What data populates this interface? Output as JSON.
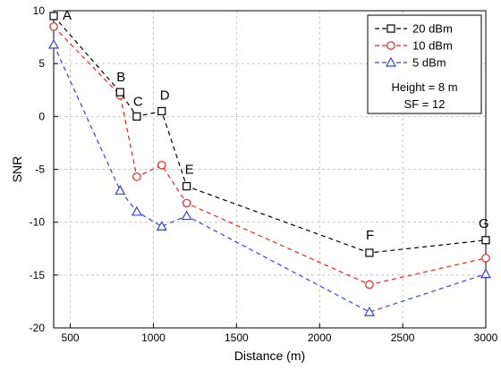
{
  "chart_data": {
    "type": "line",
    "xlabel": "Distance (m)",
    "ylabel": "SNR",
    "xlim": [
      400,
      3000
    ],
    "ylim": [
      -20,
      10
    ],
    "xticks": [
      500,
      1000,
      1500,
      2000,
      2500,
      3000
    ],
    "yticks": [
      -20,
      -15,
      -10,
      -5,
      0,
      5,
      10
    ],
    "grid": true,
    "legend_position": "top-right",
    "series": [
      {
        "name": "20 dBm",
        "color": "#000000",
        "marker": "square",
        "x": [
          400,
          800,
          900,
          1050,
          1200,
          2300,
          3000
        ],
        "y": [
          9.5,
          2.3,
          0.0,
          0.5,
          -6.6,
          -12.9,
          -11.7
        ]
      },
      {
        "name": "10 dBm",
        "color": "#e8231f",
        "marker": "circle",
        "x": [
          400,
          800,
          900,
          1050,
          1200,
          2300,
          3000
        ],
        "y": [
          8.5,
          2.0,
          -5.7,
          -4.6,
          -8.2,
          -15.9,
          -13.4
        ]
      },
      {
        "name": "5 dBm",
        "color": "#3344dd",
        "marker": "triangle",
        "x": [
          400,
          800,
          900,
          1050,
          1200,
          2300,
          3000
        ],
        "y": [
          6.8,
          -7.0,
          -9.0,
          -10.4,
          -9.4,
          -18.5,
          -14.9
        ]
      }
    ],
    "annotations": [
      {
        "text": "A",
        "x": 400,
        "y": 9.5
      },
      {
        "text": "B",
        "x": 800,
        "y": 2.3
      },
      {
        "text": "C",
        "x": 900,
        "y": 0.0
      },
      {
        "text": "D",
        "x": 1050,
        "y": 0.5
      },
      {
        "text": "E",
        "x": 1200,
        "y": -6.6
      },
      {
        "text": "F",
        "x": 2300,
        "y": -12.9
      },
      {
        "text": "G",
        "x": 3000,
        "y": -11.7
      }
    ],
    "legend_notes": [
      "Height = 8 m",
      "SF = 12"
    ]
  }
}
